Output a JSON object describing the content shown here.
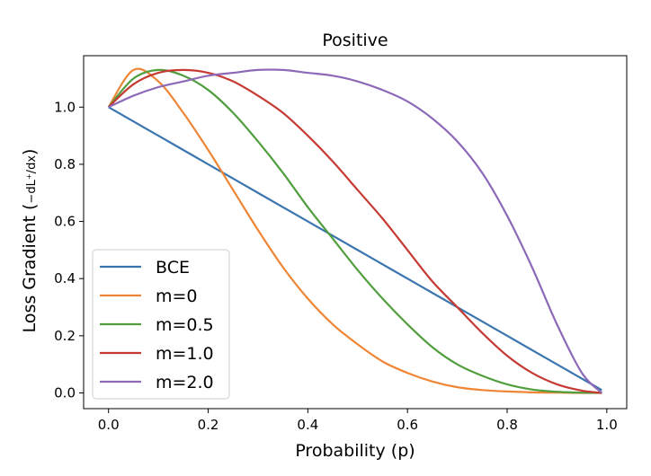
{
  "chart_data": {
    "type": "line",
    "title": "Positive",
    "xlabel": "Probability (p)",
    "ylabel": "Loss Gradient (",
    "ylabel_math": "−dL⁺/dx",
    "xlim": [
      -0.05,
      1.04
    ],
    "ylim": [
      -0.055,
      1.18
    ],
    "xticks": [
      "0.0",
      "0.2",
      "0.4",
      "0.6",
      "0.8",
      "1.0"
    ],
    "xtick_values": [
      0.0,
      0.2,
      0.4,
      0.6,
      0.8,
      1.0
    ],
    "yticks": [
      "0.0",
      "0.2",
      "0.4",
      "0.6",
      "0.8",
      "1.0"
    ],
    "ytick_values": [
      0.0,
      0.2,
      0.4,
      0.6,
      0.8,
      1.0
    ],
    "legend_position": "lower-left",
    "grid": false,
    "x": [
      0.0,
      0.05,
      0.1,
      0.15,
      0.2,
      0.25,
      0.3,
      0.35,
      0.4,
      0.45,
      0.5,
      0.55,
      0.6,
      0.65,
      0.7,
      0.75,
      0.8,
      0.85,
      0.9,
      0.95,
      0.99
    ],
    "series": [
      {
        "name": "BCE",
        "color": "#3b75af",
        "values": [
          1.0,
          0.95,
          0.9,
          0.85,
          0.8,
          0.75,
          0.7,
          0.65,
          0.6,
          0.55,
          0.5,
          0.45,
          0.4,
          0.35,
          0.3,
          0.25,
          0.2,
          0.15,
          0.1,
          0.05,
          0.01
        ]
      },
      {
        "name": "m=0",
        "color": "#ef8636",
        "values": [
          1.0,
          1.13,
          1.09,
          0.98,
          0.85,
          0.71,
          0.57,
          0.44,
          0.33,
          0.24,
          0.17,
          0.11,
          0.07,
          0.04,
          0.02,
          0.01,
          0.005,
          0.002,
          0.001,
          0.0,
          0.0
        ]
      },
      {
        "name": "m=0.5",
        "color": "#519e3e",
        "values": [
          1.0,
          1.1,
          1.13,
          1.11,
          1.06,
          0.98,
          0.88,
          0.77,
          0.65,
          0.54,
          0.43,
          0.33,
          0.24,
          0.16,
          0.1,
          0.06,
          0.03,
          0.012,
          0.004,
          0.001,
          0.0
        ]
      },
      {
        "name": "m=1.0",
        "color": "#c53a32",
        "values": [
          1.0,
          1.08,
          1.12,
          1.13,
          1.12,
          1.09,
          1.04,
          0.98,
          0.9,
          0.81,
          0.71,
          0.61,
          0.5,
          0.39,
          0.3,
          0.21,
          0.13,
          0.07,
          0.03,
          0.008,
          0.0
        ]
      },
      {
        "name": "m=2.0",
        "color": "#8d69b8",
        "values": [
          1.0,
          1.04,
          1.07,
          1.09,
          1.11,
          1.12,
          1.13,
          1.13,
          1.12,
          1.11,
          1.09,
          1.06,
          1.02,
          0.96,
          0.88,
          0.77,
          0.62,
          0.44,
          0.24,
          0.07,
          0.0
        ]
      }
    ]
  }
}
